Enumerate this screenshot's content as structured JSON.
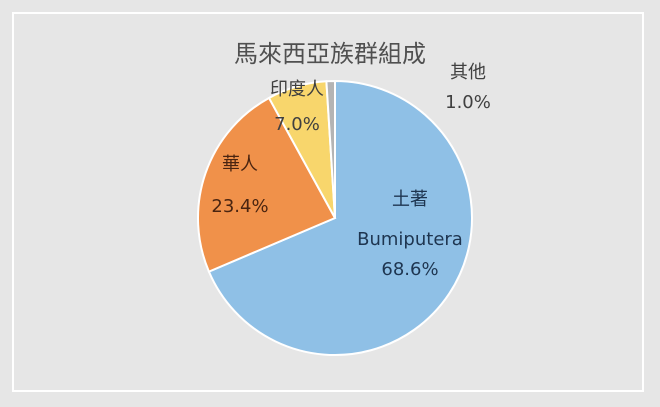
{
  "chart_data": {
    "type": "pie",
    "title": "馬來西亞族群組成",
    "slices": [
      {
        "label": "土著",
        "sublabel": "Bumiputera",
        "value": 68.6,
        "value_label": "68.6%",
        "color": "#8fc0e6",
        "text_color": "#1e3550"
      },
      {
        "label": "華人",
        "value": 23.4,
        "value_label": "23.4%",
        "color": "#f0914a",
        "text_color": "#4a2410"
      },
      {
        "label": "印度人",
        "value": 7.0,
        "value_label": "7.0%",
        "color": "#f8d66c",
        "text_color": "#404040"
      },
      {
        "label": "其他",
        "value": 1.0,
        "value_label": "1.0%",
        "color": "#b4b4b4",
        "text_color": "#404040"
      }
    ],
    "start_angle": "12 o'clock",
    "direction": "clockwise",
    "legend": "none"
  }
}
